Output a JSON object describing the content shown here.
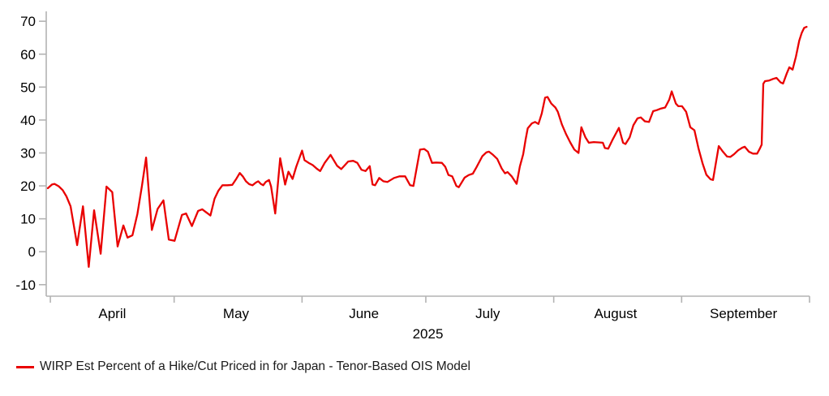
{
  "chart_data": {
    "type": "line",
    "title": "",
    "xlabel": "2025",
    "ylabel": "",
    "grid": false,
    "legend_position": "bottom-left",
    "axis_color": "#b3b3b3",
    "text_color": "#000000",
    "x_axis": {
      "unit": "days since April 1, 2025",
      "xlim": [
        -1,
        184
      ],
      "tick_days": [
        0,
        30,
        61,
        91,
        122,
        153,
        184
      ],
      "month_label_days": [
        15,
        45,
        76,
        106,
        137,
        168
      ],
      "month_labels": [
        "April",
        "May",
        "June",
        "July",
        "August",
        "September"
      ],
      "year_label": "2025"
    },
    "y_axis": {
      "ylim": [
        -13.5,
        73
      ],
      "ticks": [
        -10,
        0,
        10,
        20,
        30,
        40,
        50,
        60,
        70
      ],
      "tick_labels": [
        "-10",
        "0",
        "10",
        "20",
        "30",
        "40",
        "50",
        "60",
        "70"
      ]
    },
    "series": [
      {
        "name": "WIRP Est Percent of a Hike/Cut Priced in for Japan - Tenor-Based OIS Model",
        "color": "#e90000",
        "line_width": 2.3,
        "points": [
          [
            -0.6,
            19.3
          ],
          [
            0.4,
            20.4
          ],
          [
            1,
            20.6
          ],
          [
            2,
            19.9
          ],
          [
            3,
            18.7
          ],
          [
            3.9,
            16.8
          ],
          [
            4.9,
            13.8
          ],
          [
            6.5,
            2
          ],
          [
            7.9,
            13.8
          ],
          [
            9.3,
            -4.6
          ],
          [
            10.6,
            12.6
          ],
          [
            12.2,
            -0.6
          ],
          [
            13.6,
            19.8
          ],
          [
            15,
            18.1
          ],
          [
            16.3,
            1.6
          ],
          [
            17.7,
            8
          ],
          [
            18.7,
            4.3
          ],
          [
            19.9,
            5
          ],
          [
            21.1,
            11.5
          ],
          [
            22.2,
            20
          ],
          [
            23.2,
            28.6
          ],
          [
            24.6,
            6.6
          ],
          [
            26,
            13
          ],
          [
            27.4,
            15.6
          ],
          [
            28.7,
            3.7
          ],
          [
            30.1,
            3.3
          ],
          [
            31.9,
            11.2
          ],
          [
            32.9,
            11.6
          ],
          [
            34.3,
            7.8
          ],
          [
            35.8,
            12.4
          ],
          [
            36.8,
            12.9
          ],
          [
            38.8,
            11
          ],
          [
            39.8,
            16.1
          ],
          [
            40.7,
            18.5
          ],
          [
            41.7,
            20.2
          ],
          [
            42.9,
            20.2
          ],
          [
            44.1,
            20.3
          ],
          [
            45.1,
            22.2
          ],
          [
            45.9,
            23.9
          ],
          [
            46.7,
            22.8
          ],
          [
            47.4,
            21.4
          ],
          [
            48.2,
            20.5
          ],
          [
            49,
            20.2
          ],
          [
            49.8,
            21
          ],
          [
            50.4,
            21.4
          ],
          [
            51,
            20.6
          ],
          [
            51.6,
            20.2
          ],
          [
            52.2,
            21.2
          ],
          [
            53,
            21.8
          ],
          [
            53.5,
            19.8
          ],
          [
            54.5,
            11.6
          ],
          [
            55.7,
            28.4
          ],
          [
            56.9,
            20.4
          ],
          [
            57.7,
            24.3
          ],
          [
            58.7,
            22.1
          ],
          [
            59.6,
            25.8
          ],
          [
            61,
            30.7
          ],
          [
            61.6,
            27.8
          ],
          [
            62.6,
            27
          ],
          [
            63.6,
            26.3
          ],
          [
            64.6,
            25.2
          ],
          [
            65.4,
            24.5
          ],
          [
            66.5,
            27
          ],
          [
            67.9,
            29.4
          ],
          [
            69.5,
            26.1
          ],
          [
            70.5,
            25.1
          ],
          [
            72.2,
            27.4
          ],
          [
            73.4,
            27.6
          ],
          [
            74.4,
            27
          ],
          [
            75.4,
            24.9
          ],
          [
            76.4,
            24.5
          ],
          [
            77.4,
            26
          ],
          [
            78.1,
            20.4
          ],
          [
            78.7,
            20.2
          ],
          [
            79.7,
            22.4
          ],
          [
            80.7,
            21.4
          ],
          [
            81.7,
            21.2
          ],
          [
            83.3,
            22.4
          ],
          [
            84.6,
            22.9
          ],
          [
            86,
            22.9
          ],
          [
            87.2,
            20.2
          ],
          [
            88,
            20
          ],
          [
            89.6,
            31
          ],
          [
            90.6,
            31.2
          ],
          [
            91.5,
            30.4
          ],
          [
            92.5,
            27
          ],
          [
            93.5,
            27.1
          ],
          [
            94.9,
            27
          ],
          [
            95.7,
            25.8
          ],
          [
            96.5,
            23.3
          ],
          [
            97.4,
            22.9
          ],
          [
            98.4,
            20
          ],
          [
            99,
            19.6
          ],
          [
            100.4,
            22.5
          ],
          [
            101.4,
            23.3
          ],
          [
            102.4,
            23.7
          ],
          [
            103.3,
            25.7
          ],
          [
            104.7,
            29
          ],
          [
            105.7,
            30.2
          ],
          [
            106.3,
            30.4
          ],
          [
            107.3,
            29.4
          ],
          [
            108.3,
            28.2
          ],
          [
            109.4,
            25.3
          ],
          [
            110.2,
            23.8
          ],
          [
            110.8,
            24.2
          ],
          [
            111.8,
            22.9
          ],
          [
            113,
            20.6
          ],
          [
            113.8,
            25.9
          ],
          [
            114.6,
            29.6
          ],
          [
            115.2,
            34.1
          ],
          [
            115.7,
            37.5
          ],
          [
            116.7,
            39
          ],
          [
            117.5,
            39.4
          ],
          [
            118.3,
            38.8
          ],
          [
            119.1,
            42
          ],
          [
            119.9,
            46.8
          ],
          [
            120.5,
            47
          ],
          [
            121.4,
            45
          ],
          [
            122.4,
            43.8
          ],
          [
            123,
            42.5
          ],
          [
            124,
            38.6
          ],
          [
            125,
            35.7
          ],
          [
            126,
            33.2
          ],
          [
            127,
            31
          ],
          [
            128,
            30
          ],
          [
            128.7,
            37.8
          ],
          [
            129.7,
            34.7
          ],
          [
            130.5,
            33.1
          ],
          [
            131.7,
            33.3
          ],
          [
            132.9,
            33.2
          ],
          [
            133.9,
            33.1
          ],
          [
            134.4,
            31.5
          ],
          [
            135.2,
            31.3
          ],
          [
            136.2,
            33.9
          ],
          [
            137.8,
            37.6
          ],
          [
            138.8,
            33.1
          ],
          [
            139.4,
            32.7
          ],
          [
            140.4,
            34.7
          ],
          [
            141.3,
            38.4
          ],
          [
            142.3,
            40.5
          ],
          [
            143.1,
            40.8
          ],
          [
            144.1,
            39.6
          ],
          [
            145.1,
            39.4
          ],
          [
            146.1,
            42.7
          ],
          [
            147,
            43
          ],
          [
            148,
            43.5
          ],
          [
            149,
            43.8
          ],
          [
            150,
            46.2
          ],
          [
            150.6,
            48.7
          ],
          [
            151.6,
            45
          ],
          [
            152.2,
            44.2
          ],
          [
            153.1,
            44.2
          ],
          [
            154.1,
            42.5
          ],
          [
            155.1,
            37.8
          ],
          [
            156.1,
            36.9
          ],
          [
            157.1,
            31.3
          ],
          [
            158.1,
            26.7
          ],
          [
            159,
            23.4
          ],
          [
            160,
            22
          ],
          [
            160.6,
            21.8
          ],
          [
            161.4,
            27.6
          ],
          [
            162,
            32.1
          ],
          [
            163,
            30.4
          ],
          [
            164,
            28.9
          ],
          [
            164.8,
            28.8
          ],
          [
            165.7,
            29.6
          ],
          [
            166.7,
            30.8
          ],
          [
            167.7,
            31.6
          ],
          [
            168.3,
            31.9
          ],
          [
            169.3,
            30.4
          ],
          [
            170.3,
            29.8
          ],
          [
            171.3,
            29.8
          ],
          [
            171.9,
            31.2
          ],
          [
            172.4,
            32.5
          ],
          [
            172.8,
            51
          ],
          [
            173.2,
            51.8
          ],
          [
            174.2,
            52
          ],
          [
            175.2,
            52.5
          ],
          [
            176,
            52.8
          ],
          [
            177,
            51.4
          ],
          [
            177.6,
            51.1
          ],
          [
            178.5,
            54.2
          ],
          [
            179.1,
            56
          ],
          [
            179.9,
            55.3
          ],
          [
            180.7,
            59.2
          ],
          [
            181.5,
            64.1
          ],
          [
            182.1,
            66.4
          ],
          [
            182.7,
            68
          ],
          [
            183.3,
            68.3
          ]
        ]
      }
    ]
  },
  "legend": {
    "swatch": "red-line",
    "label": "WIRP Est Percent of a Hike/Cut Priced in for Japan - Tenor-Based OIS Model"
  }
}
